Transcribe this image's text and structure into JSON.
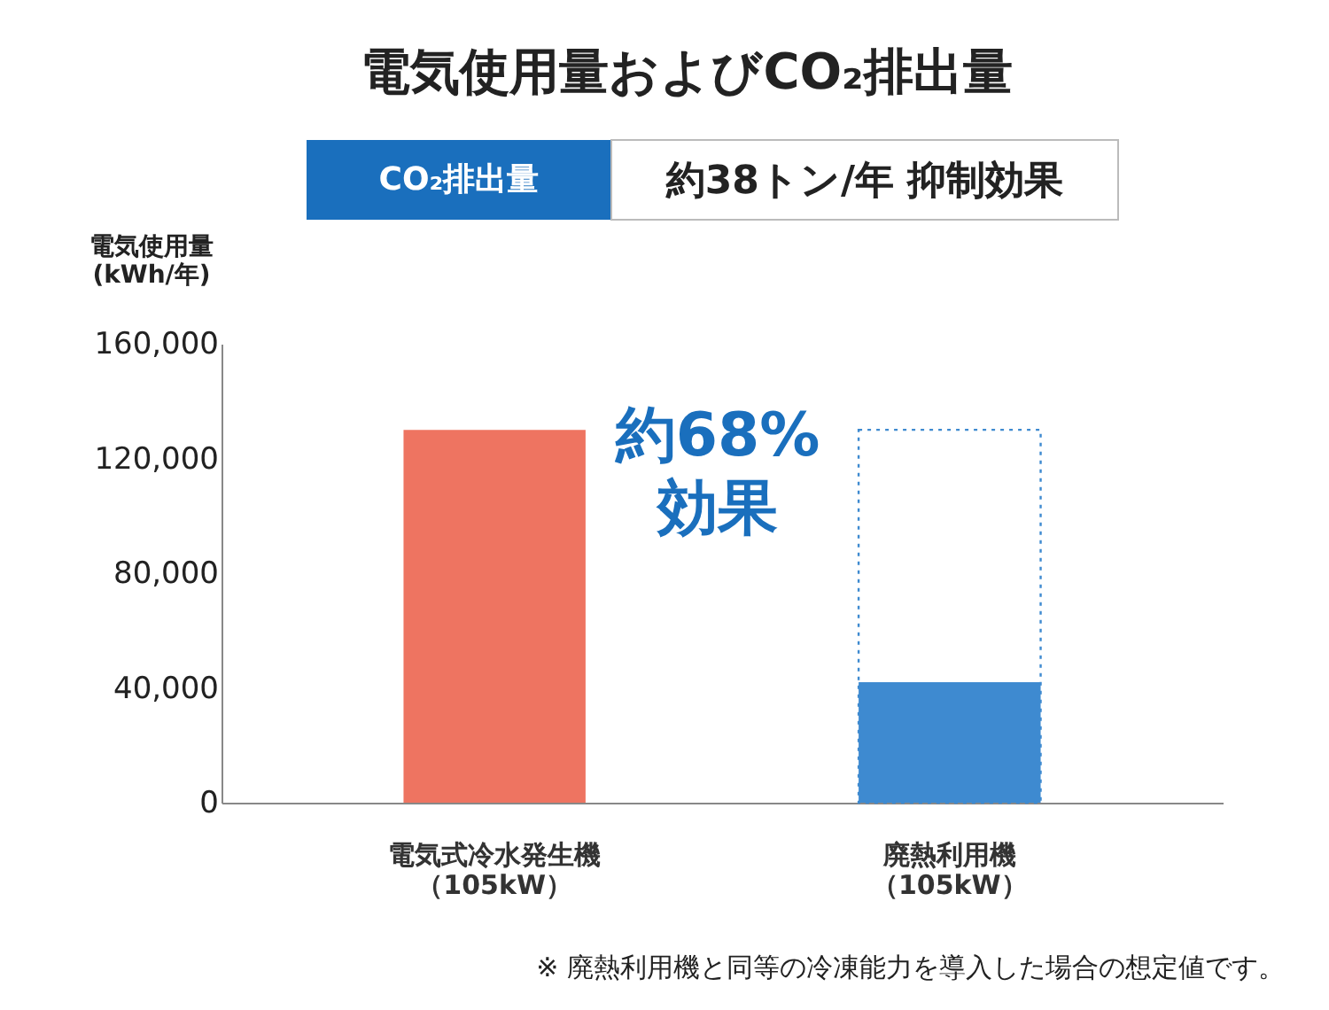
{
  "chart_data": {
    "type": "bar",
    "title": "電気使用量およびCO₂排出量",
    "ylabel": "電気使用量\n(kWh/年)",
    "categories": [
      "電気式冷水発生機（105kW）",
      "廃熱利用機（105kW）"
    ],
    "series": [
      {
        "values": [
          130000,
          42000
        ],
        "colors": [
          "#ee7461",
          "#3e8ad0"
        ]
      },
      {
        "values": [
          null,
          130000
        ],
        "color": "#3e8ad0",
        "line_style": "dotted"
      }
    ],
    "ylim": [
      0,
      160000
    ],
    "yticks": [
      0,
      {
        "value": 40000,
        "label": "40,000"
      },
      {
        "value": 80000,
        "label": "80,000"
      },
      {
        "value": 120000,
        "label": "120,000"
      },
      {
        "value": 160000,
        "label": "160,000"
      }
    ],
    "grid": false,
    "annotations": [
      "CO₂排出量",
      "約38トン/年 抑制効果",
      "約68%\n効果",
      "※ 廃熱利用機と同等の冷凍能力を導入した場合の想定値です。"
    ]
  }
}
